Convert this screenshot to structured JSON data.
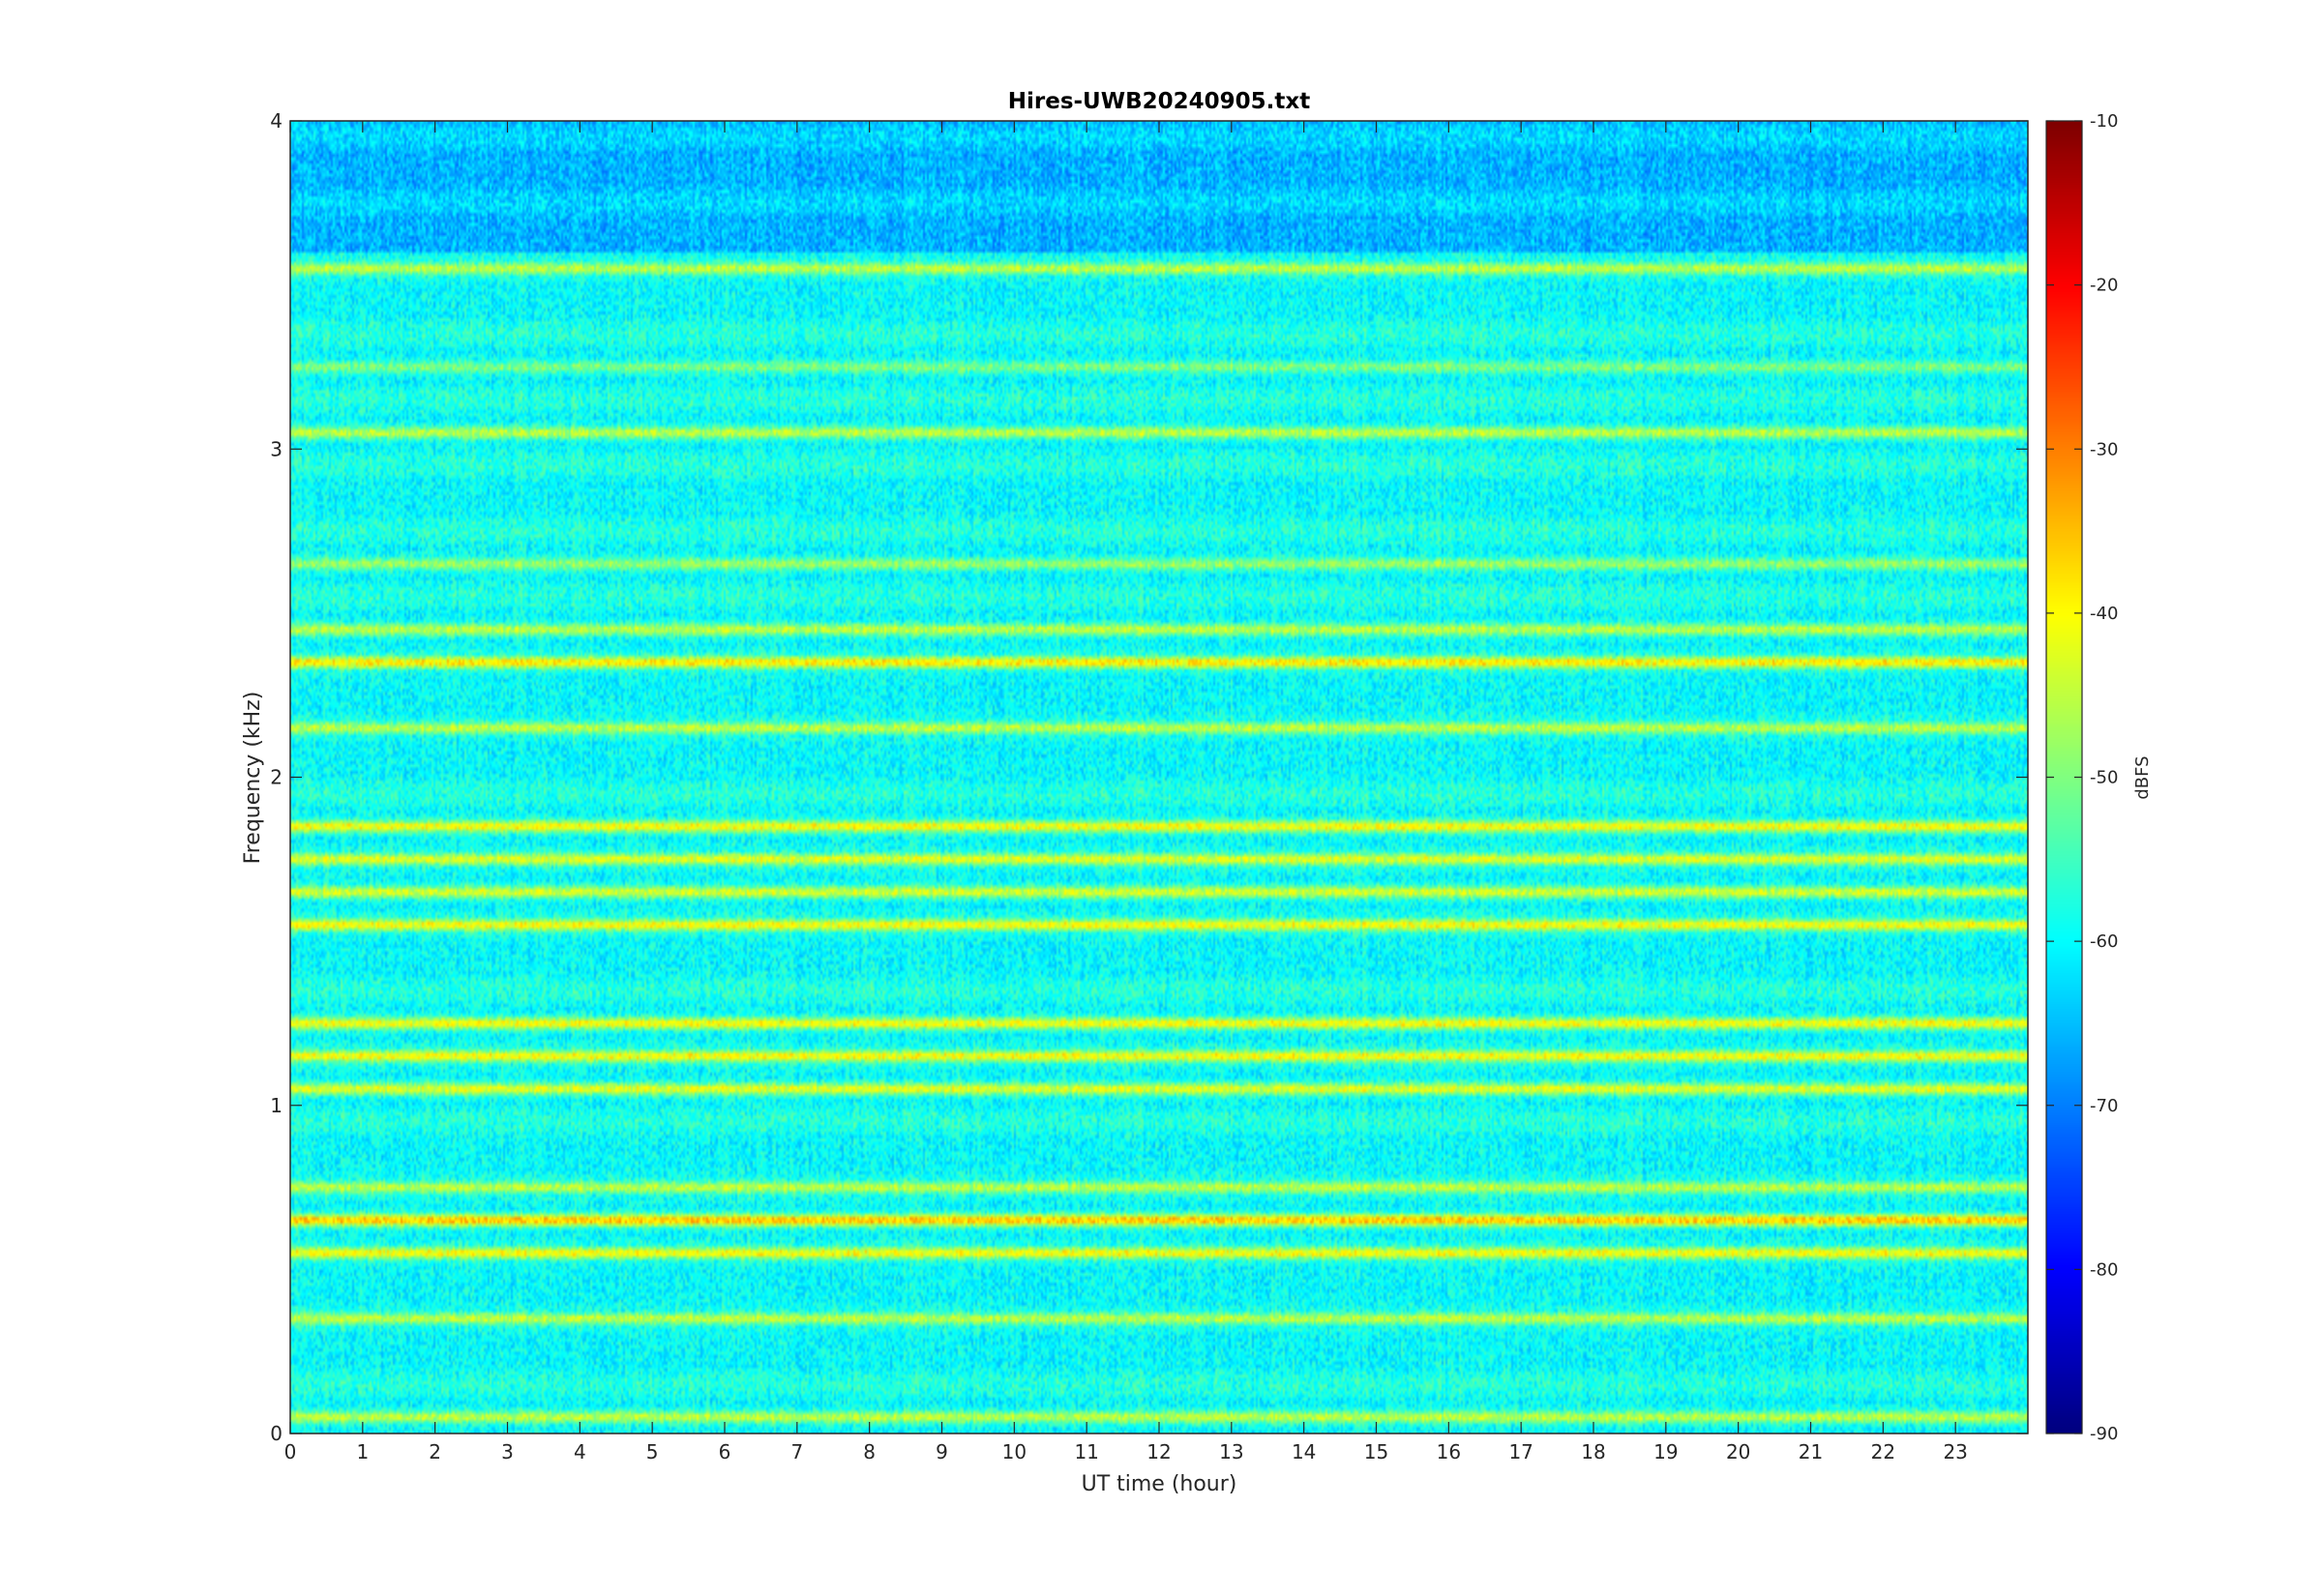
{
  "chart_data": {
    "type": "heatmap",
    "title": "Hires-UWB20240905.txt",
    "xlabel": "UT time (hour)",
    "ylabel": "Frequency (kHz)",
    "xlim": [
      0,
      24
    ],
    "ylim": [
      0,
      4
    ],
    "x_ticks": [
      "0",
      "1",
      "2",
      "3",
      "4",
      "5",
      "6",
      "7",
      "8",
      "9",
      "10",
      "11",
      "12",
      "13",
      "14",
      "15",
      "16",
      "17",
      "18",
      "19",
      "20",
      "21",
      "22",
      "23"
    ],
    "y_ticks": [
      "0",
      "1",
      "2",
      "3",
      "4"
    ],
    "colorbar": {
      "label": "dBFS",
      "range": [
        -90,
        -10
      ],
      "ticks": [
        "-10",
        "-20",
        "-30",
        "-40",
        "-50",
        "-60",
        "-70",
        "-80",
        "-90"
      ],
      "colormap": "jet"
    },
    "frequency_bands_khz": [
      {
        "f": 0.05,
        "level_dbfs": -45
      },
      {
        "f": 0.35,
        "level_dbfs": -45
      },
      {
        "f": 0.55,
        "level_dbfs": -40
      },
      {
        "f": 0.65,
        "level_dbfs": -35
      },
      {
        "f": 0.75,
        "level_dbfs": -45
      },
      {
        "f": 1.05,
        "level_dbfs": -42
      },
      {
        "f": 1.15,
        "level_dbfs": -40
      },
      {
        "f": 1.25,
        "level_dbfs": -40
      },
      {
        "f": 1.55,
        "level_dbfs": -40
      },
      {
        "f": 1.65,
        "level_dbfs": -43
      },
      {
        "f": 1.75,
        "level_dbfs": -42
      },
      {
        "f": 1.85,
        "level_dbfs": -40
      },
      {
        "f": 2.15,
        "level_dbfs": -45
      },
      {
        "f": 2.35,
        "level_dbfs": -38
      },
      {
        "f": 2.45,
        "level_dbfs": -45
      },
      {
        "f": 2.65,
        "level_dbfs": -48
      },
      {
        "f": 3.05,
        "level_dbfs": -45
      },
      {
        "f": 3.25,
        "level_dbfs": -50
      },
      {
        "f": 3.55,
        "level_dbfs": -45
      }
    ],
    "background_level_dbfs": -60,
    "grid": false
  }
}
